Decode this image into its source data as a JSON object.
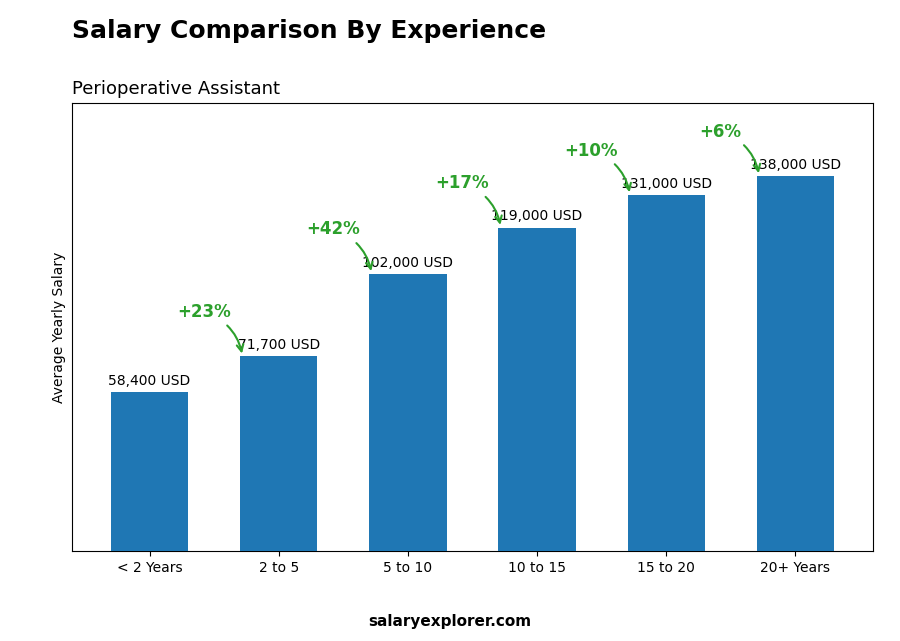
{
  "chart_data": {
    "type": "bar",
    "title": "Salary Comparison By Experience",
    "subtitle": "Perioperative Assistant",
    "categories": [
      "< 2 Years",
      "2 to 5",
      "5 to 10",
      "10 to 15",
      "15 to 20",
      "20+ Years"
    ],
    "values": [
      58400,
      71700,
      102000,
      119000,
      131000,
      138000
    ],
    "value_labels": [
      "58,400 USD",
      "71,700 USD",
      "102,000 USD",
      "119,000 USD",
      "131,000 USD",
      "138,000 USD"
    ],
    "data_labels": true,
    "ylabel": "Average Yearly Salary",
    "ylim": [
      0,
      165000
    ],
    "tick_labels": "x",
    "annotations": [
      "+23%",
      "+42%",
      "+17%",
      "+10%",
      "+6%"
    ],
    "footer": "salaryexplorer.com"
  }
}
